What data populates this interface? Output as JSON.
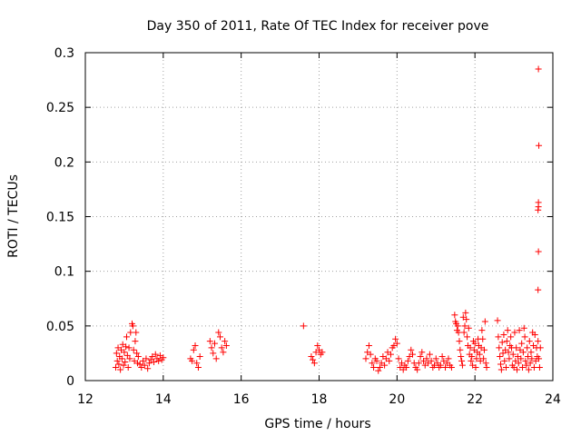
{
  "chart_data": {
    "type": "scatter",
    "title": "Day 350 of 2011, Rate Of TEC Index for receiver pove",
    "xlabel": "GPS time / hours",
    "ylabel": "ROTI / TECUs",
    "xlim": [
      12,
      24
    ],
    "ylim": [
      0,
      0.3
    ],
    "x_ticks": [
      12,
      14,
      16,
      18,
      20,
      22,
      24
    ],
    "x_tick_labels": [
      "12",
      "14",
      "16",
      "18",
      "20",
      "22",
      "24"
    ],
    "y_ticks": [
      0,
      0.05,
      0.1,
      0.15,
      0.2,
      0.25,
      0.3
    ],
    "y_tick_labels": [
      "0",
      "0.05",
      "0.1",
      "0.15",
      "0.2",
      "0.25",
      "0.3"
    ],
    "grid": true,
    "marker": "+",
    "marker_color": "#ff0000",
    "series": [
      {
        "name": "ROTI",
        "points": [
          [
            12.78,
            0.012
          ],
          [
            12.8,
            0.025
          ],
          [
            12.82,
            0.018
          ],
          [
            12.84,
            0.03
          ],
          [
            12.86,
            0.015
          ],
          [
            12.88,
            0.022
          ],
          [
            12.9,
            0.01
          ],
          [
            12.92,
            0.028
          ],
          [
            12.94,
            0.02
          ],
          [
            12.96,
            0.033
          ],
          [
            12.98,
            0.014
          ],
          [
            13.0,
            0.026
          ],
          [
            13.02,
            0.017
          ],
          [
            13.04,
            0.031
          ],
          [
            13.06,
            0.04
          ],
          [
            13.08,
            0.023
          ],
          [
            13.1,
            0.012
          ],
          [
            13.12,
            0.03
          ],
          [
            13.14,
            0.02
          ],
          [
            13.16,
            0.044
          ],
          [
            13.2,
            0.052
          ],
          [
            13.22,
            0.05
          ],
          [
            13.24,
            0.028
          ],
          [
            13.26,
            0.018
          ],
          [
            13.28,
            0.036
          ],
          [
            13.3,
            0.044
          ],
          [
            13.32,
            0.025
          ],
          [
            13.34,
            0.016
          ],
          [
            13.36,
            0.022
          ],
          [
            13.4,
            0.015
          ],
          [
            13.44,
            0.012
          ],
          [
            13.48,
            0.018
          ],
          [
            13.52,
            0.014
          ],
          [
            13.56,
            0.02
          ],
          [
            13.6,
            0.011
          ],
          [
            13.64,
            0.016
          ],
          [
            13.68,
            0.019
          ],
          [
            13.72,
            0.022
          ],
          [
            13.76,
            0.017
          ],
          [
            13.8,
            0.024
          ],
          [
            13.84,
            0.02
          ],
          [
            13.88,
            0.018
          ],
          [
            13.92,
            0.023
          ],
          [
            13.96,
            0.019
          ],
          [
            14.0,
            0.021
          ],
          [
            14.7,
            0.02
          ],
          [
            14.74,
            0.018
          ],
          [
            14.78,
            0.028
          ],
          [
            14.82,
            0.032
          ],
          [
            14.86,
            0.016
          ],
          [
            14.9,
            0.012
          ],
          [
            14.94,
            0.022
          ],
          [
            15.2,
            0.036
          ],
          [
            15.24,
            0.03
          ],
          [
            15.28,
            0.025
          ],
          [
            15.32,
            0.034
          ],
          [
            15.36,
            0.02
          ],
          [
            15.42,
            0.044
          ],
          [
            15.46,
            0.04
          ],
          [
            15.5,
            0.03
          ],
          [
            15.54,
            0.026
          ],
          [
            15.58,
            0.036
          ],
          [
            15.62,
            0.032
          ],
          [
            17.6,
            0.05
          ],
          [
            17.8,
            0.022
          ],
          [
            17.84,
            0.019
          ],
          [
            17.88,
            0.016
          ],
          [
            17.92,
            0.026
          ],
          [
            17.96,
            0.032
          ],
          [
            18.0,
            0.028
          ],
          [
            18.04,
            0.024
          ],
          [
            18.08,
            0.026
          ],
          [
            19.2,
            0.02
          ],
          [
            19.24,
            0.026
          ],
          [
            19.28,
            0.032
          ],
          [
            19.32,
            0.024
          ],
          [
            19.36,
            0.016
          ],
          [
            19.4,
            0.012
          ],
          [
            19.44,
            0.02
          ],
          [
            19.48,
            0.018
          ],
          [
            19.52,
            0.009
          ],
          [
            19.56,
            0.012
          ],
          [
            19.6,
            0.016
          ],
          [
            19.64,
            0.022
          ],
          [
            19.68,
            0.014
          ],
          [
            19.72,
            0.02
          ],
          [
            19.76,
            0.026
          ],
          [
            19.8,
            0.018
          ],
          [
            19.84,
            0.024
          ],
          [
            19.88,
            0.03
          ],
          [
            19.92,
            0.032
          ],
          [
            19.96,
            0.038
          ],
          [
            20.0,
            0.034
          ],
          [
            20.04,
            0.02
          ],
          [
            20.08,
            0.012
          ],
          [
            20.12,
            0.016
          ],
          [
            20.16,
            0.01
          ],
          [
            20.2,
            0.014
          ],
          [
            20.24,
            0.012
          ],
          [
            20.28,
            0.018
          ],
          [
            20.32,
            0.022
          ],
          [
            20.36,
            0.028
          ],
          [
            20.4,
            0.024
          ],
          [
            20.44,
            0.016
          ],
          [
            20.48,
            0.012
          ],
          [
            20.52,
            0.01
          ],
          [
            20.56,
            0.016
          ],
          [
            20.6,
            0.022
          ],
          [
            20.64,
            0.026
          ],
          [
            20.68,
            0.018
          ],
          [
            20.72,
            0.014
          ],
          [
            20.76,
            0.02
          ],
          [
            20.8,
            0.016
          ],
          [
            20.84,
            0.024
          ],
          [
            20.88,
            0.018
          ],
          [
            20.92,
            0.012
          ],
          [
            20.96,
            0.014
          ],
          [
            21.0,
            0.02
          ],
          [
            21.04,
            0.016
          ],
          [
            21.08,
            0.012
          ],
          [
            21.12,
            0.014
          ],
          [
            21.16,
            0.022
          ],
          [
            21.2,
            0.018
          ],
          [
            21.24,
            0.012
          ],
          [
            21.28,
            0.016
          ],
          [
            21.32,
            0.02
          ],
          [
            21.36,
            0.014
          ],
          [
            21.4,
            0.012
          ],
          [
            21.48,
            0.06
          ],
          [
            21.5,
            0.054
          ],
          [
            21.52,
            0.052
          ],
          [
            21.54,
            0.046
          ],
          [
            21.56,
            0.05
          ],
          [
            21.58,
            0.044
          ],
          [
            21.6,
            0.036
          ],
          [
            21.62,
            0.028
          ],
          [
            21.64,
            0.022
          ],
          [
            21.66,
            0.018
          ],
          [
            21.68,
            0.014
          ],
          [
            21.7,
            0.058
          ],
          [
            21.72,
            0.044
          ],
          [
            21.74,
            0.05
          ],
          [
            21.76,
            0.062
          ],
          [
            21.78,
            0.056
          ],
          [
            21.8,
            0.04
          ],
          [
            21.82,
            0.032
          ],
          [
            21.84,
            0.048
          ],
          [
            21.86,
            0.024
          ],
          [
            21.88,
            0.03
          ],
          [
            21.9,
            0.018
          ],
          [
            21.92,
            0.022
          ],
          [
            21.94,
            0.014
          ],
          [
            21.96,
            0.036
          ],
          [
            21.98,
            0.028
          ],
          [
            22.0,
            0.034
          ],
          [
            22.02,
            0.012
          ],
          [
            22.04,
            0.02
          ],
          [
            22.06,
            0.026
          ],
          [
            22.08,
            0.038
          ],
          [
            22.1,
            0.032
          ],
          [
            22.12,
            0.024
          ],
          [
            22.14,
            0.018
          ],
          [
            22.16,
            0.03
          ],
          [
            22.18,
            0.046
          ],
          [
            22.2,
            0.038
          ],
          [
            22.22,
            0.02
          ],
          [
            22.24,
            0.028
          ],
          [
            22.26,
            0.054
          ],
          [
            22.28,
            0.016
          ],
          [
            22.3,
            0.012
          ],
          [
            22.58,
            0.055
          ],
          [
            22.6,
            0.04
          ],
          [
            22.62,
            0.03
          ],
          [
            22.64,
            0.022
          ],
          [
            22.66,
            0.015
          ],
          [
            22.68,
            0.01
          ],
          [
            22.7,
            0.035
          ],
          [
            22.72,
            0.025
          ],
          [
            22.74,
            0.042
          ],
          [
            22.76,
            0.018
          ],
          [
            22.78,
            0.028
          ],
          [
            22.8,
            0.012
          ],
          [
            22.82,
            0.036
          ],
          [
            22.84,
            0.046
          ],
          [
            22.86,
            0.026
          ],
          [
            22.88,
            0.02
          ],
          [
            22.9,
            0.032
          ],
          [
            22.92,
            0.04
          ],
          [
            22.94,
            0.03
          ],
          [
            22.96,
            0.014
          ],
          [
            22.98,
            0.024
          ],
          [
            23.0,
            0.012
          ],
          [
            23.02,
            0.044
          ],
          [
            23.04,
            0.018
          ],
          [
            23.06,
            0.03
          ],
          [
            23.08,
            0.01
          ],
          [
            23.1,
            0.022
          ],
          [
            23.12,
            0.016
          ],
          [
            23.14,
            0.046
          ],
          [
            23.16,
            0.028
          ],
          [
            23.18,
            0.02
          ],
          [
            23.2,
            0.034
          ],
          [
            23.22,
            0.012
          ],
          [
            23.24,
            0.026
          ],
          [
            23.26,
            0.048
          ],
          [
            23.28,
            0.04
          ],
          [
            23.3,
            0.018
          ],
          [
            23.32,
            0.014
          ],
          [
            23.34,
            0.03
          ],
          [
            23.36,
            0.022
          ],
          [
            23.38,
            0.01
          ],
          [
            23.4,
            0.036
          ],
          [
            23.42,
            0.016
          ],
          [
            23.44,
            0.026
          ],
          [
            23.46,
            0.02
          ],
          [
            23.48,
            0.044
          ],
          [
            23.5,
            0.032
          ],
          [
            23.52,
            0.012
          ],
          [
            23.54,
            0.042
          ],
          [
            23.56,
            0.018
          ],
          [
            23.58,
            0.03
          ],
          [
            23.6,
            0.022
          ],
          [
            23.62,
            0.036
          ],
          [
            23.64,
            0.02
          ],
          [
            23.66,
            0.012
          ],
          [
            23.68,
            0.03
          ],
          [
            23.63,
            0.285
          ],
          [
            23.64,
            0.215
          ],
          [
            23.63,
            0.163
          ],
          [
            23.63,
            0.159
          ],
          [
            23.62,
            0.156
          ],
          [
            23.63,
            0.118
          ],
          [
            23.62,
            0.083
          ]
        ]
      }
    ]
  }
}
